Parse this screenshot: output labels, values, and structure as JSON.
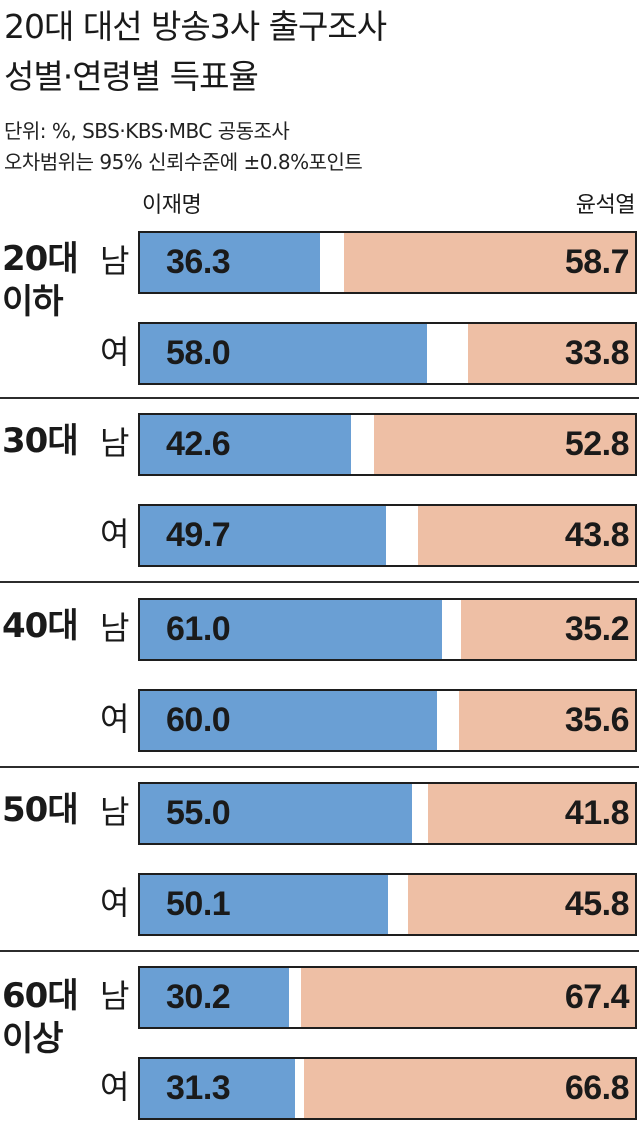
{
  "chart_data": {
    "type": "bar",
    "orientation": "horizontal-stacked",
    "title": "20대 대선 방송3사 출구조사",
    "subtitle": "성별·연령별 득표율",
    "notes": [
      "단위: %, SBS·KBS·MBC 공동조사",
      "오차범위는 95% 신뢰수준에 ±0.8%포인트"
    ],
    "candidates": [
      "이재명",
      "윤석열"
    ],
    "xlim": [
      0,
      100
    ],
    "colors": {
      "이재명": "#6a9fd4",
      "윤석열": "#eebfa5",
      "other": "#ffffff"
    },
    "groups": [
      {
        "label": [
          "20대",
          "이하"
        ],
        "rows": [
          {
            "sex": "남",
            "values": [
              36.3,
              58.7
            ],
            "labels": [
              "36.3",
              "58.7"
            ]
          },
          {
            "sex": "여",
            "values": [
              58.0,
              33.8
            ],
            "labels": [
              "58.0",
              "33.8"
            ]
          }
        ]
      },
      {
        "label": [
          "30대"
        ],
        "rows": [
          {
            "sex": "남",
            "values": [
              42.6,
              52.8
            ],
            "labels": [
              "42.6",
              "52.8"
            ]
          },
          {
            "sex": "여",
            "values": [
              49.7,
              43.8
            ],
            "labels": [
              "49.7",
              "43.8"
            ]
          }
        ]
      },
      {
        "label": [
          "40대"
        ],
        "rows": [
          {
            "sex": "남",
            "values": [
              61.0,
              35.2
            ],
            "labels": [
              "61.0",
              "35.2"
            ]
          },
          {
            "sex": "여",
            "values": [
              60.0,
              35.6
            ],
            "labels": [
              "60.0",
              "35.6"
            ]
          }
        ]
      },
      {
        "label": [
          "50대"
        ],
        "rows": [
          {
            "sex": "남",
            "values": [
              55.0,
              41.8
            ],
            "labels": [
              "55.0",
              "41.8"
            ]
          },
          {
            "sex": "여",
            "values": [
              50.1,
              45.8
            ],
            "labels": [
              "50.1",
              "45.8"
            ]
          }
        ]
      },
      {
        "label": [
          "60대",
          "이상"
        ],
        "rows": [
          {
            "sex": "남",
            "values": [
              30.2,
              67.4
            ],
            "labels": [
              "30.2",
              "67.4"
            ]
          },
          {
            "sex": "여",
            "values": [
              31.3,
              66.8
            ],
            "labels": [
              "31.3",
              "66.8"
            ]
          }
        ]
      }
    ]
  }
}
